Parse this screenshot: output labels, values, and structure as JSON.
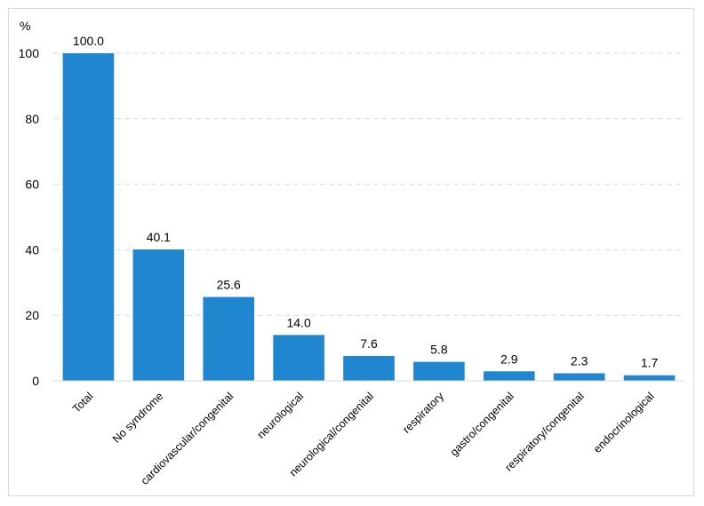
{
  "chart_data": {
    "type": "bar",
    "y_unit": "%",
    "categories": [
      "Total",
      "No syndrome",
      "cardiovascular/congenital",
      "neurological",
      "neurological/congenital",
      "respiratory",
      "gastro/congenital",
      "respiratory/congenital",
      "endocrinological"
    ],
    "values": [
      100.0,
      40.1,
      25.6,
      14.0,
      7.6,
      5.8,
      2.9,
      2.3,
      1.7
    ],
    "value_labels": [
      "100.0",
      "40.1",
      "25.6",
      "14.0",
      "7.6",
      "5.8",
      "2.9",
      "2.3",
      "1.7"
    ],
    "ylim": [
      0,
      100
    ],
    "yticks": [
      0,
      20,
      40,
      60,
      80,
      100
    ],
    "ytick_labels": [
      "0",
      "20",
      "40",
      "60",
      "80",
      "100"
    ],
    "grid": "horizontal dashed",
    "bar_color": "#1f86cf",
    "legend": "none"
  }
}
